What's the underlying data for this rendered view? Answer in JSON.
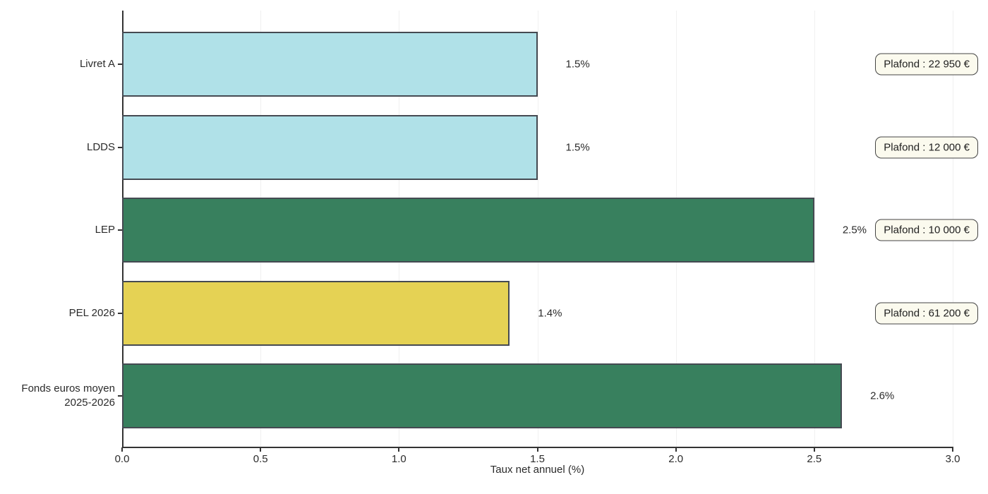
{
  "chart_data": {
    "type": "bar",
    "orientation": "horizontal",
    "title": "",
    "xlabel": "Taux net annuel (%)",
    "xlim": [
      0,
      3
    ],
    "xticks": [
      0,
      0.5,
      1,
      1.5,
      2,
      2.5,
      3
    ],
    "xtick_labels": [
      "0.0",
      "0.5",
      "1.0",
      "1.5",
      "2.0",
      "2.5",
      "3.0"
    ],
    "grid": "vertical-light",
    "legend": "none",
    "categories": [
      "Livret A",
      "LDDS",
      "LEP",
      "PEL 2026",
      "Fonds euros moyen\n2025-2026"
    ],
    "values": [
      1.5,
      1.5,
      2.5,
      1.4,
      2.6
    ],
    "bar_value_labels": [
      "1.5%",
      "1.5%",
      "2.5%",
      "1.4%",
      "2.6%"
    ],
    "plafond_annotations": [
      "Plafond : 22 950 €",
      "Plafond : 12 000 €",
      "Plafond : 10 000 €",
      "Plafond : 61 200 €",
      null
    ],
    "bar_colors": [
      "#b0e1e8",
      "#b0e1e8",
      "#38805e",
      "#e5d254",
      "#38805e"
    ],
    "bar_edge_color": "#454a52",
    "annotation_bg": "#fbfaee",
    "annotation_border": "#444444",
    "axis_color": "#333333",
    "gridline_color": "#f0f0f0",
    "text_color": "#2b2b2b"
  }
}
